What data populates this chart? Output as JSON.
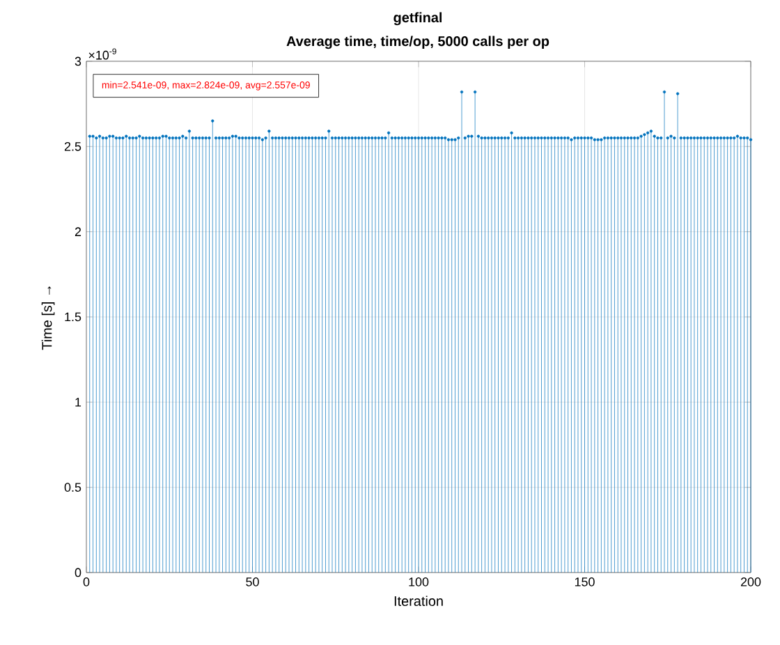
{
  "chart_data": {
    "type": "lollipop",
    "title": "getfinal",
    "subtitle": "Average time, time/op, 5000 calls per op",
    "xlabel": "Iteration",
    "ylabel": "Time [s] →",
    "annotations": [
      "×10$^{-9}$",
      "min=2.541e-09, max=2.824e-09, avg=2.557e-09"
    ],
    "x": [
      1,
      2,
      3,
      4,
      5,
      6,
      7,
      8,
      9,
      10,
      11,
      12,
      13,
      14,
      15,
      16,
      17,
      18,
      19,
      20,
      21,
      22,
      23,
      24,
      25,
      26,
      27,
      28,
      29,
      30,
      31,
      32,
      33,
      34,
      35,
      36,
      37,
      38,
      39,
      40,
      41,
      42,
      43,
      44,
      45,
      46,
      47,
      48,
      49,
      50,
      51,
      52,
      53,
      54,
      55,
      56,
      57,
      58,
      59,
      60,
      61,
      62,
      63,
      64,
      65,
      66,
      67,
      68,
      69,
      70,
      71,
      72,
      73,
      74,
      75,
      76,
      77,
      78,
      79,
      80,
      81,
      82,
      83,
      84,
      85,
      86,
      87,
      88,
      89,
      90,
      91,
      92,
      93,
      94,
      95,
      96,
      97,
      98,
      99,
      100,
      101,
      102,
      103,
      104,
      105,
      106,
      107,
      108,
      109,
      110,
      111,
      112,
      113,
      114,
      115,
      116,
      117,
      118,
      119,
      120,
      121,
      122,
      123,
      124,
      125,
      126,
      127,
      128,
      129,
      130,
      131,
      132,
      133,
      134,
      135,
      136,
      137,
      138,
      139,
      140,
      141,
      142,
      143,
      144,
      145,
      146,
      147,
      148,
      149,
      150,
      151,
      152,
      153,
      154,
      155,
      156,
      157,
      158,
      159,
      160,
      161,
      162,
      163,
      164,
      165,
      166,
      167,
      168,
      169,
      170,
      171,
      172,
      173,
      174,
      175,
      176,
      177,
      178,
      179,
      180,
      181,
      182,
      183,
      184,
      185,
      186,
      187,
      188,
      189,
      190,
      191,
      192,
      193,
      194,
      195,
      196,
      197,
      198,
      199,
      200
    ],
    "series": [
      {
        "color": "#0072bd",
        "values": [
          2.56,
          2.56,
          2.55,
          2.56,
          2.55,
          2.55,
          2.56,
          2.56,
          2.55,
          2.55,
          2.55,
          2.56,
          2.55,
          2.55,
          2.55,
          2.56,
          2.55,
          2.55,
          2.55,
          2.55,
          2.55,
          2.55,
          2.56,
          2.56,
          2.55,
          2.55,
          2.55,
          2.55,
          2.56,
          2.55,
          2.59,
          2.55,
          2.55,
          2.55,
          2.55,
          2.55,
          2.55,
          2.65,
          2.55,
          2.55,
          2.55,
          2.55,
          2.55,
          2.56,
          2.56,
          2.55,
          2.55,
          2.55,
          2.55,
          2.55,
          2.55,
          2.55,
          2.54,
          2.55,
          2.59,
          2.55,
          2.55,
          2.55,
          2.55,
          2.55,
          2.55,
          2.55,
          2.55,
          2.55,
          2.55,
          2.55,
          2.55,
          2.55,
          2.55,
          2.55,
          2.55,
          2.55,
          2.59,
          2.55,
          2.55,
          2.55,
          2.55,
          2.55,
          2.55,
          2.55,
          2.55,
          2.55,
          2.55,
          2.55,
          2.55,
          2.55,
          2.55,
          2.55,
          2.55,
          2.55,
          2.58,
          2.55,
          2.55,
          2.55,
          2.55,
          2.55,
          2.55,
          2.55,
          2.55,
          2.55,
          2.55,
          2.55,
          2.55,
          2.55,
          2.55,
          2.55,
          2.55,
          2.55,
          2.54,
          2.54,
          2.54,
          2.55,
          2.82,
          2.55,
          2.56,
          2.56,
          2.82,
          2.56,
          2.55,
          2.55,
          2.55,
          2.55,
          2.55,
          2.55,
          2.55,
          2.55,
          2.55,
          2.58,
          2.55,
          2.55,
          2.55,
          2.55,
          2.55,
          2.55,
          2.55,
          2.55,
          2.55,
          2.55,
          2.55,
          2.55,
          2.55,
          2.55,
          2.55,
          2.55,
          2.55,
          2.54,
          2.55,
          2.55,
          2.55,
          2.55,
          2.55,
          2.55,
          2.54,
          2.54,
          2.54,
          2.55,
          2.55,
          2.55,
          2.55,
          2.55,
          2.55,
          2.55,
          2.55,
          2.55,
          2.55,
          2.55,
          2.56,
          2.57,
          2.58,
          2.59,
          2.56,
          2.55,
          2.55,
          2.82,
          2.55,
          2.56,
          2.55,
          2.81,
          2.55,
          2.55,
          2.55,
          2.55,
          2.55,
          2.55,
          2.55,
          2.55,
          2.55,
          2.55,
          2.55,
          2.55,
          2.55,
          2.55,
          2.55,
          2.55,
          2.55,
          2.56,
          2.55,
          2.55,
          2.55,
          2.54
        ]
      }
    ],
    "xlim": [
      0,
      200
    ],
    "ylim": [
      0,
      3
    ],
    "xticks": [
      0,
      50,
      100,
      150,
      200
    ],
    "yticks": [
      0,
      0.5,
      1,
      1.5,
      2,
      2.5,
      3
    ],
    "grid": true,
    "marker": "circle"
  }
}
